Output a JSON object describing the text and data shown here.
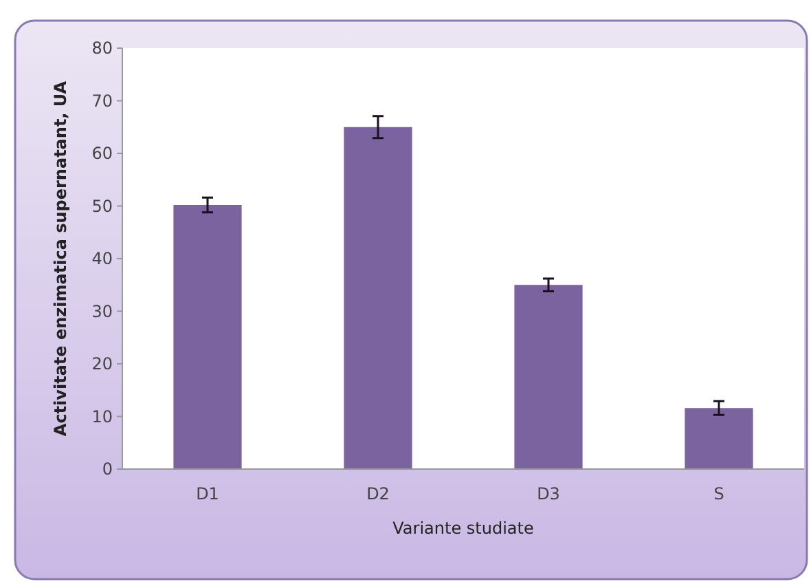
{
  "chart_data": {
    "type": "bar",
    "xlabel": "Variante studiate",
    "ylabel": "Activitate enzimatica supernatant, UA",
    "categories": [
      "D1",
      "D2",
      "D3",
      "S"
    ],
    "values": [
      50.2,
      65,
      35,
      11.6
    ],
    "errors": [
      1.4,
      2.1,
      1.2,
      1.3
    ],
    "color": "#7b63a0",
    "ylim": [
      0,
      80
    ],
    "yticks": [
      0,
      10,
      20,
      30,
      40,
      50,
      60,
      70,
      80
    ],
    "grid": false
  }
}
